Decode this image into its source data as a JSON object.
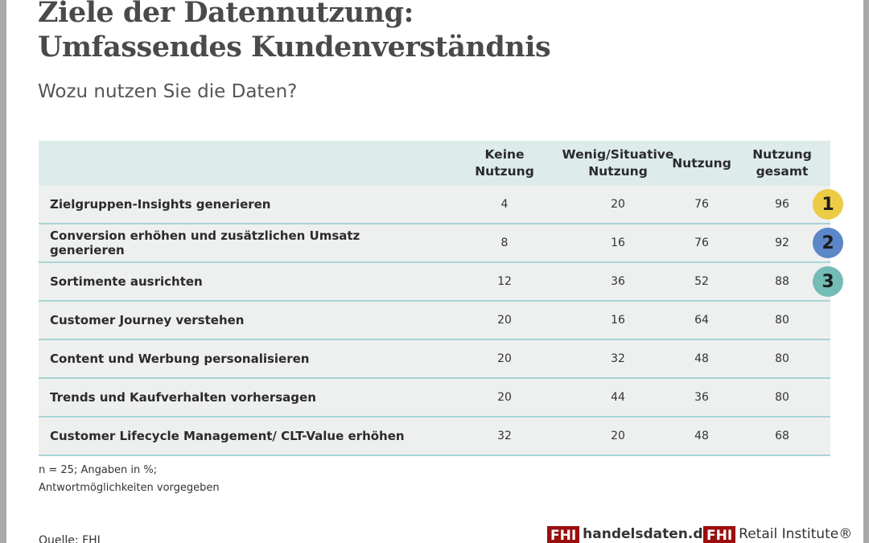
{
  "title_line1": "Ziele der Datennutzung:",
  "title_line2": "Umfassendes Kundenverständnis",
  "subtitle": "Wozu nutzen Sie die Daten?",
  "chart_data": {
    "type": "table",
    "columns": [
      "",
      "Keine Nutzung",
      "Wenig/Situative Nutzung",
      "Nutzung",
      "Nutzung gesamt"
    ],
    "rows": [
      {
        "label": "Zielgruppen-Insights generieren",
        "values": [
          "4",
          "20",
          "76",
          "96"
        ],
        "rank": "1",
        "rank_color": "#eccb45"
      },
      {
        "label": "Conversion erhöhen und zusätzlichen Umsatz generieren",
        "values": [
          "8",
          "16",
          "76",
          "92"
        ],
        "rank": "2",
        "rank_color": "#5b86c8"
      },
      {
        "label": "Sortimente ausrichten",
        "values": [
          "12",
          "36",
          "52",
          "88"
        ],
        "rank": "3",
        "rank_color": "#74bcb6"
      },
      {
        "label": "Customer Journey verstehen",
        "values": [
          "20",
          "16",
          "64",
          "80"
        ]
      },
      {
        "label": "Content und Werbung personalisieren",
        "values": [
          "20",
          "32",
          "48",
          "80"
        ]
      },
      {
        "label": "Trends und Kaufverhalten vorhersagen",
        "values": [
          "20",
          "44",
          "36",
          "80"
        ]
      },
      {
        "label": "Customer Lifecycle Management/ CLT-Value erhöhen",
        "values": [
          "32",
          "20",
          "48",
          "68"
        ]
      }
    ]
  },
  "header": {
    "c1a": "Keine",
    "c1b": "Nutzung",
    "c2a": "Wenig/Situative",
    "c2b": "Nutzung",
    "c3": "Nutzung",
    "c4a": "Nutzung",
    "c4b": "gesamt"
  },
  "note1": "n = 25; Angaben in %;",
  "note2": "Antwortmöglichkeiten vorgegeben",
  "source": "Quelle: FHI",
  "logo1_box": "FHI",
  "logo1_text": "handelsdaten.de",
  "logo2_box": "FHI",
  "logo2_text": "Retail Institute®"
}
